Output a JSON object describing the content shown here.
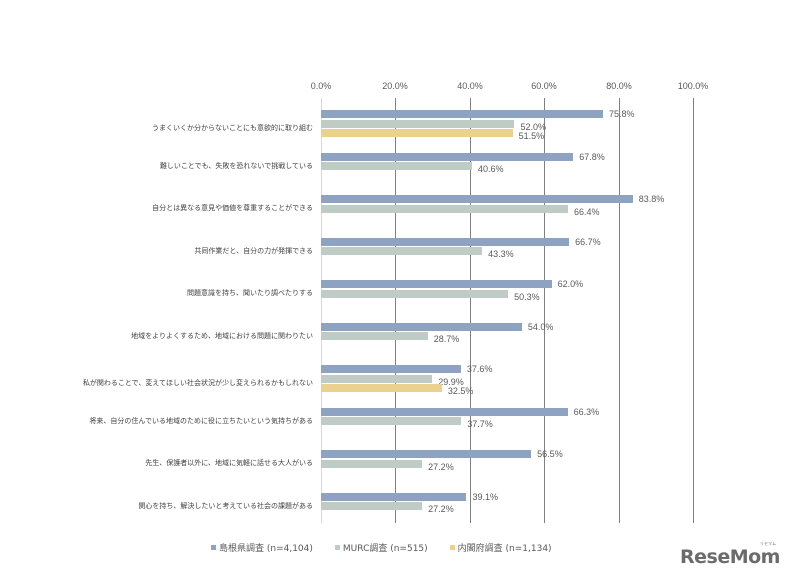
{
  "chart_data": {
    "type": "bar",
    "orientation": "horizontal",
    "title": "",
    "xlabel": "",
    "ylabel": "",
    "xlim": [
      0,
      100
    ],
    "x_ticks": [
      "0.0%",
      "20.0%",
      "40.0%",
      "60.0%",
      "80.0%",
      "100.0%"
    ],
    "grid": true,
    "legend_position": "bottom",
    "categories": [
      "うまくいくか分からないことにも意欲的に取り組む",
      "難しいことでも、失敗を恐れないで挑戦している",
      "自分とは異なる意見や価値を尊重することができる",
      "共同作業だと、自分の力が発揮できる",
      "問題意識を持ち、聞いたり調べたりする",
      "地域をよりよくするため、地域における問題に関わりたい",
      "私が関わることで、変えてほしい社会状況が少し変えられるかもしれない",
      "将来、自分の住んでいる地域のために役に立ちたいという気持ちがある",
      "先生、保護者以外に、地域に気軽に話せる大人がいる",
      "関心を持ち、解決したいと考えている社会の課題がある"
    ],
    "series": [
      {
        "name": "島根県調査 (n=4,104)",
        "color": "#8ea3c2",
        "values": [
          75.8,
          67.8,
          83.8,
          66.7,
          62.0,
          54.0,
          37.6,
          66.3,
          56.5,
          39.1
        ],
        "labels": [
          "75.8%",
          "67.8%",
          "83.8%",
          "66.7%",
          "62.0%",
          "54.0%",
          "37.6%",
          "66.3%",
          "56.5%",
          "39.1%"
        ]
      },
      {
        "name": "MURC調査 (n=515)",
        "color": "#bfccc5",
        "values": [
          52.0,
          40.6,
          66.4,
          43.3,
          50.3,
          28.7,
          29.9,
          37.7,
          27.2,
          27.2
        ],
        "labels": [
          "52.0%",
          "40.6%",
          "66.4%",
          "43.3%",
          "50.3%",
          "28.7%",
          "29.9%",
          "37.7%",
          "27.2%",
          "27.2%"
        ]
      },
      {
        "name": "内閣府調査 (n=1,134)",
        "color": "#ebd18e",
        "values": [
          51.5,
          null,
          null,
          null,
          null,
          null,
          32.5,
          null,
          null,
          null
        ],
        "labels": [
          "51.5%",
          "",
          "",
          "",
          "",
          "",
          "32.5%",
          "",
          "",
          ""
        ]
      }
    ]
  },
  "legend": {
    "items": [
      {
        "label": "島根県調査 (n=4,104)",
        "color": "#8ea3c2"
      },
      {
        "label": "MURC調査 (n=515)",
        "color": "#bfccc5"
      },
      {
        "label": "内閣府調査 (n=1,134)",
        "color": "#ebd18e"
      }
    ]
  },
  "watermark": {
    "text": "ReseMom",
    "ruby": "リセマム"
  }
}
